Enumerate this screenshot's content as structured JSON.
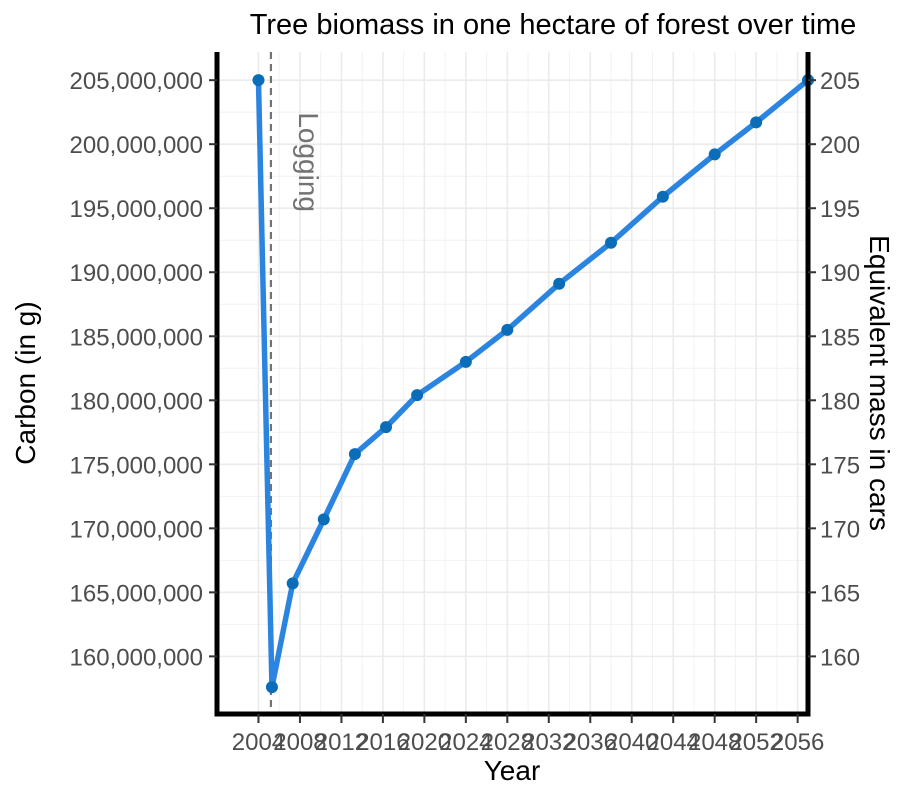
{
  "chart_data": {
    "type": "line",
    "title": "Tree biomass in one hectare of forest over time",
    "xlabel": "Year",
    "ylabel": "Carbon (in g)",
    "y2label": "Equivalent mass in cars",
    "xlim": [
      2000,
      2057
    ],
    "ylim": [
      155500000,
      207200000
    ],
    "x_ticks": [
      2004,
      2008,
      2012,
      2016,
      2020,
      2024,
      2028,
      2032,
      2036,
      2040,
      2044,
      2048,
      2052,
      2056
    ],
    "y_ticks": [
      160000000,
      165000000,
      170000000,
      175000000,
      180000000,
      185000000,
      190000000,
      195000000,
      200000000,
      205000000
    ],
    "y_tick_labels": [
      "160,000,000",
      "165,000,000",
      "170,000,000",
      "175,000,000",
      "180,000,000",
      "185,000,000",
      "190,000,000",
      "195,000,000",
      "200,000,000",
      "205,000,000"
    ],
    "y2_ticks": [
      160,
      165,
      170,
      175,
      180,
      185,
      190,
      195,
      200,
      205
    ],
    "y2_scale": 1000000,
    "grid": true,
    "line_color": "#2B85E0",
    "point_color": "#0B6DB8",
    "annotation_color": "#737373",
    "series": [
      {
        "x": [
          2004,
          2005.3,
          2007.3,
          2010.3,
          2013.3,
          2016.3,
          2019.3,
          2024,
          2028,
          2033,
          2038,
          2043,
          2048,
          2052,
          2057
        ],
        "values": [
          205000000,
          157600000,
          165700000,
          170700000,
          175800000,
          177900000,
          180400000,
          183000000,
          185500000,
          189100000,
          192300000,
          195900000,
          199200000,
          201700000,
          205000000
        ]
      }
    ],
    "annotations": [
      {
        "type": "vline",
        "x": 2005.2,
        "label": "Logging"
      }
    ]
  }
}
